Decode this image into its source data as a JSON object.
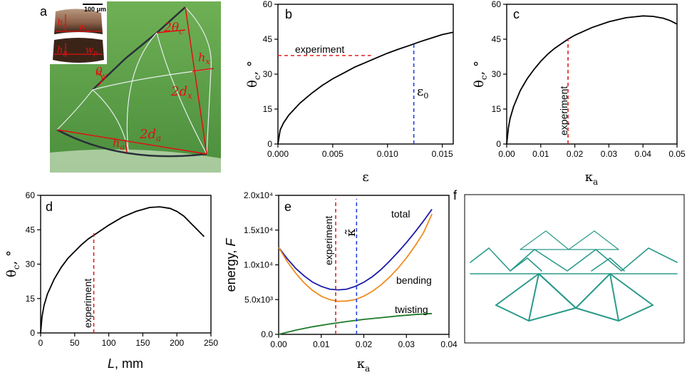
{
  "photo": {
    "label": "a",
    "scale_bar": "100 μm",
    "inset": {
      "h_a": "h",
      "h_a_sub": "a",
      "w_a": "w",
      "w_a_sub": "a",
      "h_p": "h",
      "h_p_sub": "p",
      "w_p": "w",
      "w_p_sub": "p"
    },
    "annotations": {
      "theta_c": "2θ",
      "theta_c_sub": "c",
      "h_x": "h",
      "h_x_sub": "x",
      "theta_y": "θ",
      "theta_y_sub": "y",
      "d_x": "2d",
      "d_x_sub": "x",
      "d_a": "2d",
      "d_a_sub": "a",
      "h_a": "h",
      "h_a_sub": "a"
    },
    "colors": {
      "grass": "#5fa04a",
      "annotation": "#e01010",
      "rod": "#2a2f3a"
    }
  },
  "chart_data": [
    {
      "id": "b",
      "type": "line",
      "panel_label": "b",
      "xlabel": "ε",
      "ylabel": "θ",
      "ylabel_sub": "c",
      "ylabel_suffix": ", °",
      "xlim": [
        0,
        0.016
      ],
      "ylim": [
        0,
        60
      ],
      "xticks": [
        0,
        0.005,
        0.01,
        0.015
      ],
      "xtick_labels": [
        "0.000",
        "0.005",
        "0.010",
        "0.015"
      ],
      "yticks": [
        0,
        15,
        30,
        45,
        60
      ],
      "ytick_labels": [
        "0",
        "15",
        "30",
        "45",
        "60"
      ],
      "series": [
        {
          "name": "theta_c",
          "color": "#000000",
          "x": [
            0,
            0.0002,
            0.0005,
            0.001,
            0.002,
            0.003,
            0.004,
            0.005,
            0.006,
            0.007,
            0.008,
            0.009,
            0.01,
            0.011,
            0.012,
            0.013,
            0.014,
            0.015,
            0.016
          ],
          "y": [
            0,
            6,
            9,
            12.5,
            17.5,
            21.5,
            25,
            28,
            30.5,
            33,
            35,
            37,
            39,
            40.7,
            42.3,
            44,
            45.5,
            47,
            48
          ]
        }
      ],
      "hlines": [
        {
          "y": 38,
          "x0": 0,
          "x1": 0.0085,
          "color": "#e02020",
          "label": "experiment"
        }
      ],
      "vlines": [
        {
          "x": 0.0124,
          "y0": 0,
          "y1": 44,
          "color": "#2040e0",
          "label": "ε",
          "label_sub": "0"
        }
      ]
    },
    {
      "id": "c",
      "type": "line",
      "panel_label": "c",
      "xlabel": "κ",
      "xlabel_sub": "a",
      "ylabel": "θ",
      "ylabel_sub": "c",
      "ylabel_suffix": ", °",
      "xlim": [
        0,
        0.05
      ],
      "ylim": [
        0,
        60
      ],
      "xticks": [
        0,
        0.01,
        0.02,
        0.03,
        0.04,
        0.05
      ],
      "xtick_labels": [
        "0.00",
        "0.01",
        "0.02",
        "0.03",
        "0.04",
        "0.05"
      ],
      "yticks": [
        0,
        15,
        30,
        45,
        60
      ],
      "ytick_labels": [
        "0",
        "15",
        "30",
        "45",
        "60"
      ],
      "series": [
        {
          "name": "theta_c",
          "color": "#000000",
          "x": [
            0,
            0.0005,
            0.001,
            0.002,
            0.004,
            0.006,
            0.008,
            0.01,
            0.012,
            0.014,
            0.016,
            0.018,
            0.02,
            0.025,
            0.03,
            0.035,
            0.04,
            0.043,
            0.046,
            0.048,
            0.05
          ],
          "y": [
            0,
            7,
            11,
            16,
            23,
            28,
            32,
            35.5,
            38.5,
            41,
            43,
            45,
            46.7,
            50,
            52.5,
            54.2,
            55,
            54.8,
            54,
            53,
            51.5
          ]
        }
      ],
      "vlines": [
        {
          "x": 0.018,
          "y0": 0,
          "y1": 45,
          "color": "#e02020",
          "label": "experiment"
        }
      ]
    },
    {
      "id": "d",
      "type": "line",
      "panel_label": "d",
      "xlabel": "L, mm",
      "ylabel": "θ",
      "ylabel_sub": "c",
      "ylabel_suffix": ", °",
      "xlim": [
        0,
        250
      ],
      "ylim": [
        0,
        60
      ],
      "xticks": [
        0,
        50,
        100,
        150,
        200,
        250
      ],
      "xtick_labels": [
        "0",
        "50",
        "100",
        "150",
        "200",
        "250"
      ],
      "yticks": [
        0,
        15,
        30,
        45,
        60
      ],
      "ytick_labels": [
        "0",
        "15",
        "30",
        "45",
        "60"
      ],
      "series": [
        {
          "name": "theta_c",
          "color": "#000000",
          "x": [
            0,
            2,
            5,
            10,
            20,
            30,
            40,
            50,
            60,
            70,
            80,
            100,
            120,
            140,
            160,
            175,
            190,
            200,
            210,
            220,
            230,
            240
          ],
          "y": [
            0,
            7,
            12,
            17,
            23.5,
            28.5,
            32.5,
            35.5,
            38.5,
            41,
            43,
            47,
            50.5,
            53,
            54.7,
            55,
            54.3,
            53,
            51,
            48,
            45,
            42
          ]
        }
      ],
      "vlines": [
        {
          "x": 78,
          "y0": 0,
          "y1": 43.5,
          "color": "#e02020",
          "label": "experiment"
        }
      ]
    },
    {
      "id": "e",
      "type": "line",
      "panel_label": "e",
      "xlabel": "κ",
      "xlabel_sub": "a",
      "ylabel": "energy, F",
      "xlim": [
        0,
        0.04
      ],
      "ylim": [
        0,
        20000
      ],
      "xticks": [
        0,
        0.01,
        0.02,
        0.03,
        0.04
      ],
      "xtick_labels": [
        "0.00",
        "0.01",
        "0.02",
        "0.03",
        "0.04"
      ],
      "yticks": [
        0,
        5000,
        10000,
        15000,
        20000
      ],
      "ytick_labels": [
        "0.0",
        "5.0x10³",
        "1.0x10⁴",
        "1.5x10⁴",
        "2.0x10⁴"
      ],
      "series": [
        {
          "name": "total",
          "label": "total",
          "color": "#1a1aa8",
          "x": [
            0,
            0.002,
            0.004,
            0.006,
            0.008,
            0.01,
            0.012,
            0.014,
            0.016,
            0.018,
            0.02,
            0.022,
            0.024,
            0.026,
            0.028,
            0.03,
            0.032,
            0.034,
            0.036
          ],
          "y": [
            12500,
            10900,
            9500,
            8400,
            7500,
            6900,
            6500,
            6400,
            6500,
            6900,
            7500,
            8300,
            9300,
            10500,
            11800,
            13200,
            14700,
            16300,
            18000
          ]
        },
        {
          "name": "bending",
          "label": "bending",
          "color": "#f08c1e",
          "x": [
            0,
            0.002,
            0.004,
            0.006,
            0.008,
            0.01,
            0.012,
            0.014,
            0.016,
            0.018,
            0.02,
            0.022,
            0.024,
            0.026,
            0.028,
            0.03,
            0.032,
            0.034,
            0.036
          ],
          "y": [
            12500,
            10500,
            8800,
            7400,
            6300,
            5500,
            5000,
            4750,
            4800,
            5000,
            5500,
            6200,
            7100,
            8200,
            9500,
            11000,
            12700,
            14600,
            17300
          ]
        },
        {
          "name": "twisting",
          "label": "twisting",
          "color": "#1e7a2a",
          "x": [
            0,
            0.004,
            0.008,
            0.012,
            0.016,
            0.02,
            0.024,
            0.028,
            0.032,
            0.036
          ],
          "y": [
            0,
            600,
            1100,
            1500,
            1850,
            2150,
            2400,
            2650,
            2850,
            3000
          ]
        }
      ],
      "vlines": [
        {
          "x": 0.0134,
          "y0": 0,
          "y1": 19500,
          "color": "#e02020",
          "label": "experiment"
        },
        {
          "x": 0.0183,
          "y0": 0,
          "y1": 19500,
          "color": "#2040e0",
          "label": "κ̃"
        }
      ]
    }
  ],
  "panel_f": {
    "label": "f",
    "line_color": "#2a9a8a"
  }
}
